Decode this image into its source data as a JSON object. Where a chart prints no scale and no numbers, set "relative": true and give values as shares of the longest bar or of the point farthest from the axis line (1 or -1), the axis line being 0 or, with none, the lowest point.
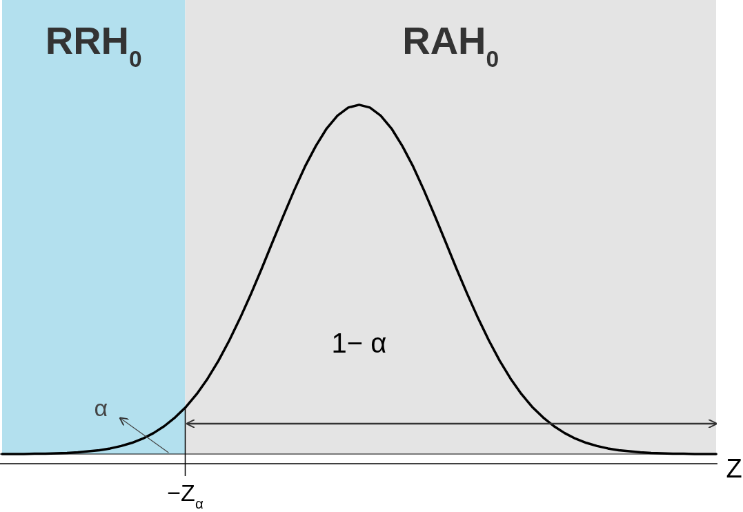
{
  "chart_data": {
    "type": "line",
    "relative": true,
    "xlabel": "Z",
    "categories": [
      null,
      null,
      null,
      null,
      null,
      null,
      null,
      null,
      null,
      null,
      null,
      null,
      null,
      null,
      null,
      null,
      null,
      null,
      null,
      null,
      null,
      null,
      null,
      null,
      null,
      null,
      null,
      null,
      null,
      null,
      null,
      null,
      null,
      null,
      null,
      null,
      null,
      null,
      null,
      null,
      null,
      null,
      null,
      null,
      null,
      null,
      null,
      null,
      null,
      null,
      null,
      null,
      null,
      null,
      null,
      null,
      null,
      null,
      null,
      null,
      null,
      null,
      null,
      null,
      null,
      null,
      null
    ],
    "series": [
      {
        "color": "#000000",
        "values": [
          0,
          0,
          0,
          0.001,
          0.001,
          0.002,
          0.003,
          0.005,
          0.008,
          0.011,
          0.016,
          0.023,
          0.032,
          0.044,
          0.06,
          0.08,
          0.105,
          0.135,
          0.172,
          0.216,
          0.267,
          0.325,
          0.389,
          0.458,
          0.531,
          0.607,
          0.682,
          0.755,
          0.823,
          0.882,
          0.932,
          0.969,
          0.992,
          1,
          0.992,
          0.969,
          0.932,
          0.882,
          0.823,
          0.755,
          0.682,
          0.607,
          0.531,
          0.458,
          0.389,
          0.325,
          0.267,
          0.216,
          0.172,
          0.135,
          0.105,
          0.08,
          0.06,
          0.044,
          0.032,
          0.023,
          0.016,
          0.011,
          0.008,
          0.005,
          0.003,
          0.002,
          0.001,
          0.001,
          0,
          0,
          0
        ]
      }
    ],
    "ref_lines": [
      {
        "axis": "x",
        "label": "−Z$_{α}$"
      }
    ],
    "annotations": [
      "1− α",
      "α",
      "RRH$_{0}$",
      "RAH$_{0}$"
    ],
    "marker": "none",
    "line_style": "solid"
  }
}
